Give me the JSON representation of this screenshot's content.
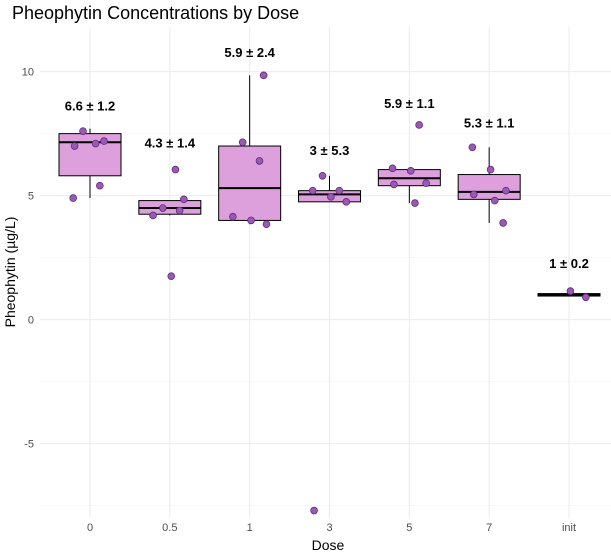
{
  "chart_data": {
    "type": "box",
    "title": "Pheophytin Concentrations by Dose",
    "xlabel": "Dose",
    "ylabel": "Pheophytin (µg/L)",
    "categories": [
      "0",
      "0.5",
      "1",
      "3",
      "5",
      "7",
      "init"
    ],
    "y_ticks": [
      -5,
      0,
      5,
      10
    ],
    "y_tick_labels": [
      "-5",
      "0",
      "5",
      "10"
    ],
    "ylim": [
      -8.0,
      11.8
    ],
    "grid": true,
    "legend": "none",
    "colors": {
      "box_fill": "#dda0dd",
      "box_border": "#000000",
      "point_fill": "#9b59b6",
      "point_border": "#5e2d79",
      "grid_major": "#ebebeb",
      "grid_minor": "#f5f5f5"
    },
    "boxes": [
      {
        "category": "0",
        "whisker_low": 4.9,
        "q1": 5.8,
        "median": 7.15,
        "q3": 7.5,
        "whisker_high": 7.7
      },
      {
        "category": "0.5",
        "whisker_low": 4.2,
        "q1": 4.25,
        "median": 4.5,
        "q3": 4.8,
        "whisker_high": 4.8
      },
      {
        "category": "1",
        "whisker_low": 3.85,
        "q1": 4.0,
        "median": 5.3,
        "q3": 7.0,
        "whisker_high": 9.85
      },
      {
        "category": "3",
        "whisker_low": 4.75,
        "q1": 4.75,
        "median": 5.05,
        "q3": 5.2,
        "whisker_high": 5.8
      },
      {
        "category": "5",
        "whisker_low": 4.7,
        "q1": 5.4,
        "median": 5.7,
        "q3": 6.05,
        "whisker_high": 6.05
      },
      {
        "category": "7",
        "whisker_low": 3.9,
        "q1": 4.85,
        "median": 5.15,
        "q3": 5.85,
        "whisker_high": 6.95
      },
      {
        "category": "init",
        "whisker_low": 0.95,
        "q1": 0.95,
        "median": 1.0,
        "q3": 1.05,
        "whisker_high": 1.05
      }
    ],
    "points": [
      {
        "category": "0",
        "values": [
          7.0,
          7.1,
          7.2,
          7.6,
          5.4,
          4.9
        ]
      },
      {
        "category": "0.5",
        "values": [
          6.05,
          4.85,
          4.5,
          4.4,
          4.2,
          1.75
        ]
      },
      {
        "category": "1",
        "values": [
          9.85,
          7.15,
          6.4,
          4.15,
          4.0,
          3.85
        ]
      },
      {
        "category": "3",
        "values": [
          5.8,
          5.2,
          5.2,
          4.95,
          4.75,
          -7.7
        ]
      },
      {
        "category": "5",
        "values": [
          7.85,
          6.1,
          6.0,
          5.5,
          5.45,
          4.7
        ]
      },
      {
        "category": "7",
        "values": [
          6.95,
          6.05,
          5.2,
          5.05,
          4.8,
          3.9
        ]
      },
      {
        "category": "init",
        "values": [
          1.15,
          0.9
        ]
      }
    ],
    "annotations": [
      {
        "category": "0",
        "text": "6.6 ± 1.2",
        "y": 8.6
      },
      {
        "category": "0.5",
        "text": "4.3 ± 1.4",
        "y": 7.1
      },
      {
        "category": "1",
        "text": "5.9 ± 2.4",
        "y": 10.75
      },
      {
        "category": "3",
        "text": "3 ± 5.3",
        "y": 6.8
      },
      {
        "category": "5",
        "text": "5.9 ± 1.1",
        "y": 8.7
      },
      {
        "category": "7",
        "text": "5.3 ± 1.1",
        "y": 7.9
      },
      {
        "category": "init",
        "text": "1 ± 0.2",
        "y": 2.25
      }
    ]
  }
}
